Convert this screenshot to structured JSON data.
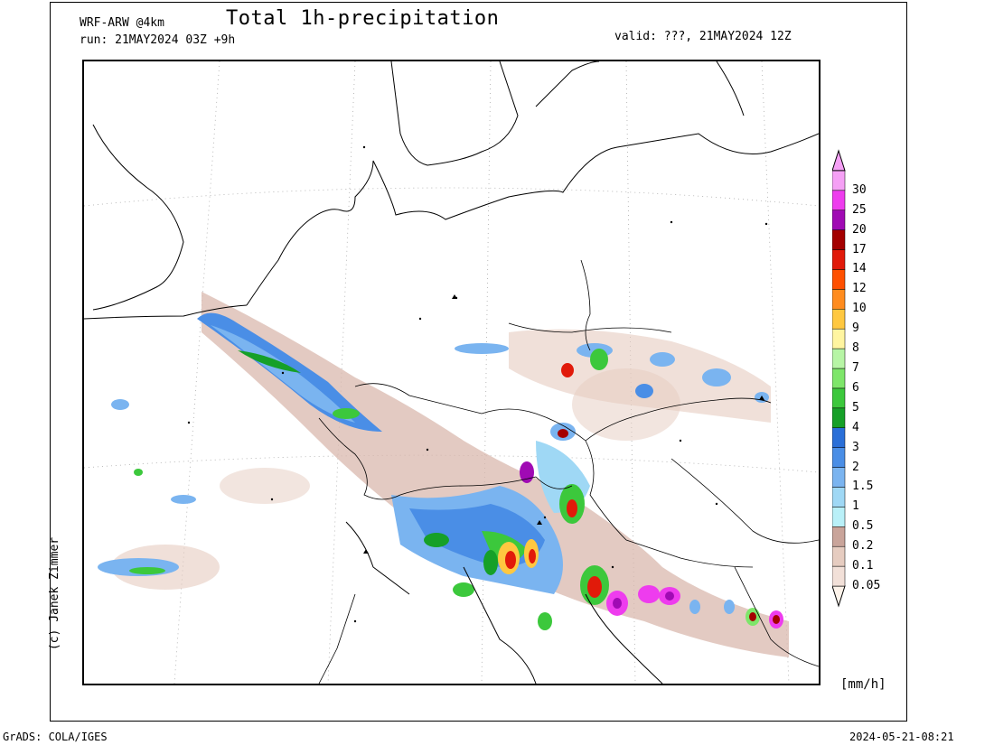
{
  "header": {
    "title": "Total 1h-precipitation",
    "model": "WRF-ARW @4km",
    "run": "run: 21MAY2024 03Z +9h",
    "valid": "valid: ???, 21MAY2024 12Z"
  },
  "credit": "(c) Janek Zimmer",
  "unit": "[mm/h]",
  "footer": {
    "left": "GrADS: COLA/IGES",
    "right": "2024-05-21-08:21"
  },
  "legend": {
    "levels": [
      "0.05",
      "0.1",
      "0.2",
      "0.5",
      "1",
      "1.5",
      "2",
      "3",
      "4",
      "5",
      "6",
      "7",
      "8",
      "9",
      "10",
      "12",
      "14",
      "17",
      "20",
      "25",
      "30"
    ],
    "colors": [
      "#fdf3ea",
      "#f2e0d8",
      "#e6ccc0",
      "#c9a49a",
      "#b9f0f8",
      "#9fd8f5",
      "#7ab4f0",
      "#4a8ee6",
      "#2a6fd8",
      "#16a028",
      "#3cc83c",
      "#7ee66a",
      "#b7f5a5",
      "#fff5a0",
      "#ffc840",
      "#ff8c1e",
      "#ff5000",
      "#e11a0a",
      "#a40000",
      "#a00ab4",
      "#ee3cee",
      "#f5a0f5"
    ]
  },
  "map": {
    "coastline_color": "#000000",
    "gridline_color": "#aaaaaa"
  }
}
